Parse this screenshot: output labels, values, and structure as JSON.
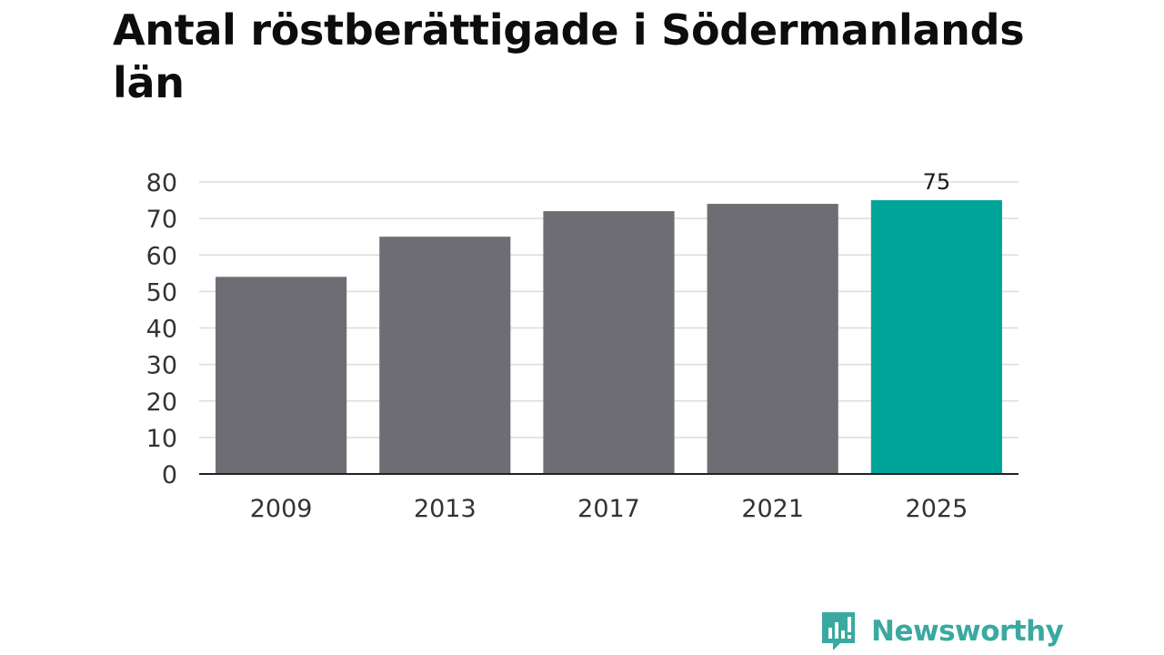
{
  "title": "Antal röstberättigade i Södermanlands län",
  "brand": {
    "name": "Newsworthy",
    "logo_icon": "newsworthy-chart-bubble-icon",
    "color": "#3aa99f"
  },
  "chart_data": {
    "type": "bar",
    "categories": [
      "2009",
      "2013",
      "2017",
      "2021",
      "2025"
    ],
    "values": [
      54,
      65,
      72,
      74,
      75
    ],
    "highlight_index": 4,
    "data_labels": [
      null,
      null,
      null,
      null,
      "75"
    ],
    "ylim": [
      0,
      80
    ],
    "yticks": [
      "0",
      "10",
      "20",
      "30",
      "40",
      "50",
      "60",
      "70",
      "80"
    ],
    "grid": true,
    "colors": {
      "bar": "#6e6d73",
      "highlight": "#00a59a",
      "grid": "#dcdcdc",
      "axis": "#222222",
      "text": "#333333"
    }
  }
}
